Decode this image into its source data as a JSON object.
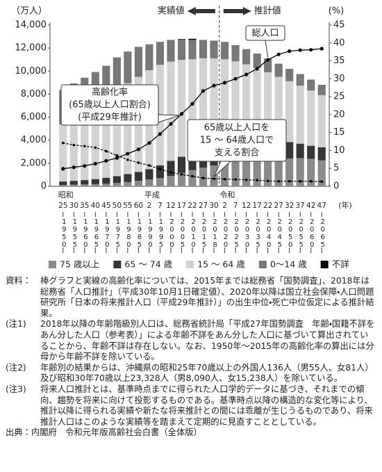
{
  "chart_data": {
    "type": "bar",
    "y_label": "（万人）",
    "y2_label": "(%)",
    "x_unit": "(年)",
    "categories": [
      "25",
      "30",
      "35",
      "40",
      "45",
      "50",
      "55",
      "60",
      "2",
      "7",
      "12",
      "17",
      "22",
      "27",
      "30",
      "2",
      "7",
      "12",
      "17",
      "22",
      "27",
      "32",
      "37",
      "42",
      "47"
    ],
    "era_labels": [
      "昭和",
      null,
      null,
      null,
      null,
      null,
      null,
      null,
      "平成",
      null,
      null,
      null,
      null,
      null,
      null,
      "令和",
      null,
      null,
      null,
      null,
      null,
      null,
      null,
      null,
      null
    ],
    "western_years": [
      "1950",
      "1955",
      "1960",
      "1965",
      "1970",
      "1975",
      "1980",
      "1985",
      "1990",
      "1995",
      "2000",
      "2005",
      "2010",
      "2015",
      "2018",
      "2020",
      "2025",
      "2030",
      "2035",
      "2040",
      "2045",
      "2050",
      "2055",
      "2060",
      "2065"
    ],
    "ylim": [
      0,
      14000
    ],
    "yticks": [
      0,
      {
        "value": 2000,
        "label": "2,000"
      },
      {
        "value": 4000,
        "label": "4,000"
      },
      {
        "value": 6000,
        "label": "6,000"
      },
      {
        "value": 8000,
        "label": "8,000"
      },
      {
        "value": 10000,
        "label": "10,000"
      },
      {
        "value": 12000,
        "label": "12,000"
      },
      {
        "value": 14000,
        "label": "14,000"
      }
    ],
    "y2lim": [
      0,
      45
    ],
    "y2ticks": [
      0,
      5,
      10,
      15,
      20,
      25,
      30,
      35,
      40,
      45
    ],
    "series": [
      {
        "name": "75 歳以上",
        "color": "#8a8a8a",
        "values": [
          107,
          138,
          164,
          189,
          224,
          284,
          366,
          471,
          597,
          717,
          900,
          1160,
          1407,
          1632,
          1798,
          1872,
          2180,
          2288,
          2260,
          2239,
          2277,
          2417,
          2446,
          2387,
          2248
        ]
      },
      {
        "name": "65 ～ 74 歳",
        "color": "#363636",
        "values": [
          309,
          338,
          375,
          437,
          516,
          602,
          699,
          776,
          892,
          1109,
          1301,
          1407,
          1517,
          1755,
          1760,
          1747,
          1497,
          1428,
          1522,
          1681,
          1643,
          1424,
          1258,
          1133,
          1133
        ]
      },
      {
        "name": "15 ～ 64 歳",
        "color": "#d2d2d2",
        "values": [
          4966,
          5473,
          6047,
          6744,
          7212,
          7581,
          7883,
          8251,
          8590,
          8716,
          8622,
          8409,
          8103,
          7728,
          7545,
          7406,
          7170,
          6875,
          6494,
          5978,
          5584,
          5275,
          5028,
          4793,
          4529
        ]
      },
      {
        "name": "0～14 歳",
        "color": "#787878",
        "values": [
          2979,
          2980,
          2843,
          2553,
          2515,
          2722,
          2751,
          2603,
          2249,
          2001,
          1847,
          1752,
          1680,
          1595,
          1542,
          1507,
          1407,
          1321,
          1246,
          1194,
          1138,
          1077,
          1012,
          951,
          898
        ]
      },
      {
        "name": "不詳",
        "color": "#000000",
        "values": [
          0,
          0,
          0,
          0,
          0,
          0,
          0,
          0,
          0,
          0,
          22,
          50,
          98,
          0,
          0,
          0,
          0,
          0,
          0,
          0,
          0,
          0,
          0,
          0,
          0
        ]
      },
      {
        "type": "line",
        "axis": "y2",
        "color": "#000000",
        "values": [
          4.9,
          5.3,
          5.7,
          6.3,
          7.1,
          7.9,
          9.1,
          10.3,
          12.1,
          14.6,
          17.4,
          20.2,
          23.0,
          26.6,
          28.1,
          28.9,
          30.0,
          31.2,
          32.8,
          35.3,
          36.8,
          37.7,
          38.0,
          38.1,
          38.4
        ]
      },
      {
        "type": "line",
        "axis": "y2",
        "color": "#000000",
        "dashed": true,
        "values": [
          12.1,
          11.5,
          11.2,
          10.8,
          9.8,
          8.6,
          7.4,
          6.6,
          5.8,
          4.8,
          3.9,
          3.3,
          2.8,
          2.3,
          2.1,
          2.0,
          1.9,
          1.8,
          1.7,
          1.5,
          1.4,
          1.4,
          1.4,
          1.4,
          1.3
        ]
      }
    ],
    "annotations": {
      "actual": "実績値",
      "projected": "推計値",
      "total": "総人口",
      "aging": [
        "高齢化率",
        "(65歳以上人口割合)",
        "(平成29年推計)"
      ],
      "support": [
        "65歳以上人口を",
        "15 ～ 64歳人口で",
        "支える割合"
      ]
    }
  },
  "notes": [
    {
      "label": "資料：",
      "text": "棒グラフと実線の高齢化率については、2015年までは総務省「国勢調査」、2018年は総務省「人口推計」（平成30年10月1日確定値）、2020年以降は国立社会保障・人口問題研究所「日本の将来推計人口（平成29年推計）」の出生中位・死亡中位仮定による推計結果。"
    },
    {
      "label": "(注1)",
      "text": "2018年以降の年齢階級別人口は、総務省統計局「平成27年国勢調査　年齢・国籍不詳をあん分した人口（参考表）」による年齢不詳をあん分した人口に基づいて算出されていることから、年齢不詳は存在しない。なお、1950年～2015年の高齢化率の算出には分母から年齢不詳を除いている。"
    },
    {
      "label": "(注2)",
      "text": "年齢別の結果からは、沖縄県の昭和25年70歳以上の外国人136人（男55人、女81人）及び昭和30年70歳以上23,328人（男8,090人、女15,238人）を除いている。"
    },
    {
      "label": "(注3)",
      "text": "将来人口推計とは、基準時点までに得られた人口学的データに基づき、それまでの傾向、趨勢を将来に向けて投影するものである。基準時点以降の構造的な変化等により、推計以降に得られる実績や新たな将来推計との間には乖離が生じうるものであり、将来推計人口はこのような実績等を踏まえて定期的に見直すこととしている。"
    }
  ],
  "credit": "出典：内閣府　令和元年版高齢社会白書（全体版）"
}
